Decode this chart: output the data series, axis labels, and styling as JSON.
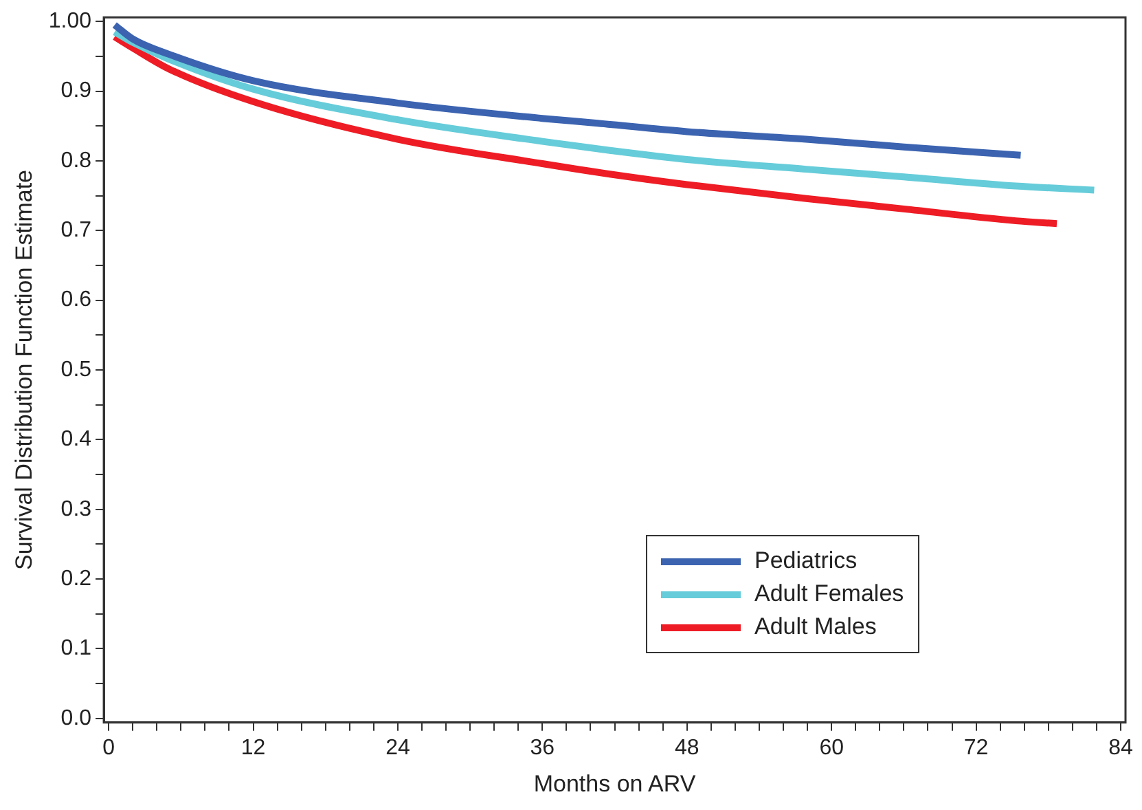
{
  "chart_data": {
    "type": "line",
    "xlabel": "Months on ARV",
    "ylabel": "Survival Distribution Function Estimate",
    "xlim": [
      -0.4,
      84.4
    ],
    "ylim": [
      -0.006,
      1.006
    ],
    "xticks": [
      0,
      {
        "value": 2,
        "label": null
      },
      {
        "value": 4,
        "label": null
      },
      {
        "value": 6,
        "label": null
      },
      {
        "value": 8,
        "label": null
      },
      {
        "value": 10,
        "label": null
      },
      12,
      {
        "value": 14,
        "label": null
      },
      {
        "value": 16,
        "label": null
      },
      {
        "value": 18,
        "label": null
      },
      {
        "value": 20,
        "label": null
      },
      {
        "value": 22,
        "label": null
      },
      24,
      {
        "value": 26,
        "label": null
      },
      {
        "value": 28,
        "label": null
      },
      {
        "value": 30,
        "label": null
      },
      {
        "value": 32,
        "label": null
      },
      {
        "value": 34,
        "label": null
      },
      36,
      {
        "value": 38,
        "label": null
      },
      {
        "value": 40,
        "label": null
      },
      {
        "value": 42,
        "label": null
      },
      {
        "value": 44,
        "label": null
      },
      {
        "value": 46,
        "label": null
      },
      48,
      {
        "value": 50,
        "label": null
      },
      {
        "value": 52,
        "label": null
      },
      {
        "value": 54,
        "label": null
      },
      {
        "value": 56,
        "label": null
      },
      {
        "value": 58,
        "label": null
      },
      60,
      {
        "value": 62,
        "label": null
      },
      {
        "value": 64,
        "label": null
      },
      {
        "value": 66,
        "label": null
      },
      {
        "value": 68,
        "label": null
      },
      {
        "value": 70,
        "label": null
      },
      72,
      {
        "value": 74,
        "label": null
      },
      {
        "value": 76,
        "label": null
      },
      {
        "value": 78,
        "label": null
      },
      {
        "value": 80,
        "label": null
      },
      {
        "value": 82,
        "label": null
      },
      84
    ],
    "yticks": [
      {
        "value": 0,
        "label": "0.0"
      },
      {
        "value": 0.05,
        "label": null
      },
      {
        "value": 0.1,
        "label": "0.1"
      },
      {
        "value": 0.15,
        "label": null
      },
      {
        "value": 0.2,
        "label": "0.2"
      },
      {
        "value": 0.25,
        "label": null
      },
      {
        "value": 0.3,
        "label": "0.3"
      },
      {
        "value": 0.35,
        "label": null
      },
      {
        "value": 0.4,
        "label": "0.4"
      },
      {
        "value": 0.45,
        "label": null
      },
      {
        "value": 0.5,
        "label": "0.5"
      },
      {
        "value": 0.55,
        "label": null
      },
      {
        "value": 0.6,
        "label": "0.6"
      },
      {
        "value": 0.65,
        "label": null
      },
      {
        "value": 0.7,
        "label": "0.7"
      },
      {
        "value": 0.75,
        "label": null
      },
      {
        "value": 0.8,
        "label": "0.8"
      },
      {
        "value": 0.85,
        "label": null
      },
      {
        "value": 0.9,
        "label": "0.9"
      },
      {
        "value": 0.95,
        "label": null
      },
      {
        "value": 1,
        "label": "1.00"
      }
    ],
    "grid": false,
    "legend": "bottom right",
    "marker": "none",
    "line_style": "solid",
    "series": [
      {
        "name": "Pediatrics",
        "color": "#3b63b0",
        "x": [
          0.5,
          2,
          5,
          12,
          24,
          36,
          40.6,
          48,
          57.9,
          66,
          75.7
        ],
        "values": [
          0.995,
          0.975,
          0.953,
          0.915,
          0.883,
          0.861,
          0.854,
          0.842,
          0.831,
          0.82,
          0.808
        ]
      },
      {
        "name": "Adult Females",
        "color": "#66ccd9",
        "x": [
          0.5,
          2,
          5,
          12,
          24,
          36,
          41.6,
          48,
          57.9,
          66,
          75.3,
          81.8
        ],
        "values": [
          0.985,
          0.97,
          0.946,
          0.903,
          0.859,
          0.828,
          0.815,
          0.802,
          0.788,
          0.777,
          0.764,
          0.758
        ]
      },
      {
        "name": "Adult Males",
        "color": "#ee1c25",
        "x": [
          0.5,
          2,
          5,
          12,
          24,
          36,
          41.6,
          48,
          57.9,
          66,
          75.3,
          78.7
        ],
        "values": [
          0.978,
          0.962,
          0.932,
          0.885,
          0.831,
          0.796,
          0.781,
          0.766,
          0.746,
          0.731,
          0.714,
          0.71
        ]
      }
    ]
  }
}
